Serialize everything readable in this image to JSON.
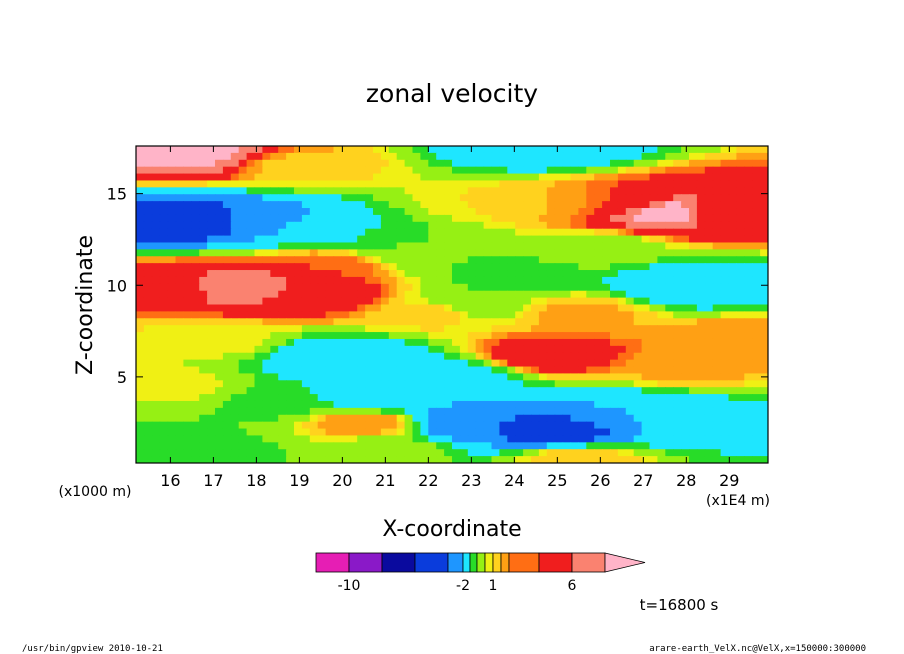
{
  "chart_data": {
    "type": "heatmap",
    "title": "zonal velocity",
    "xlabel": "X-coordinate",
    "ylabel": "Z-coordinate",
    "x_unit_label": "(x1E4 m)",
    "y_unit_label": "(x1000 m)",
    "xlim": [
      15.2,
      29.9
    ],
    "ylim": [
      0.3,
      17.6
    ],
    "x_ticks": [
      "16",
      "17",
      "18",
      "19",
      "20",
      "21",
      "22",
      "23",
      "24",
      "25",
      "26",
      "27",
      "28",
      "29"
    ],
    "y_ticks": [
      "5",
      "10",
      "15"
    ],
    "timestamp": "t=16800 s",
    "colorbar": {
      "levels": [
        -12,
        -10,
        -8,
        -6,
        -4,
        -2,
        -1,
        0,
        0.5,
        1,
        1.5,
        2,
        4,
        6,
        8
      ],
      "tick_labels": [
        "-10",
        "-2",
        "1",
        "6"
      ],
      "colors": [
        "#e61eb4",
        "#8a19c8",
        "#0a0a9e",
        "#0a3cdc",
        "#1e96ff",
        "#1ee6ff",
        "#28dc28",
        "#96f014",
        "#f0f014",
        "#ffd21e",
        "#ffa014",
        "#ff6e14",
        "#f01e1e",
        "#fa8270",
        "#ffb4c8"
      ]
    },
    "field_centers": [
      {
        "x": 16.5,
        "z": 17.2,
        "v": 6.5
      },
      {
        "x": 24.5,
        "z": 17.5,
        "v": -4
      },
      {
        "x": 19.0,
        "z": 16.5,
        "v": 0.8
      },
      {
        "x": 16.5,
        "z": 13.5,
        "v": -8
      },
      {
        "x": 18.0,
        "z": 13.5,
        "v": -5
      },
      {
        "x": 19.5,
        "z": 13.0,
        "v": -3
      },
      {
        "x": 23.5,
        "z": 14.5,
        "v": 0.5
      },
      {
        "x": 25.0,
        "z": 14.5,
        "v": 1.0
      },
      {
        "x": 27.5,
        "z": 14.0,
        "v": 7
      },
      {
        "x": 26.5,
        "z": 14.5,
        "v": 2
      },
      {
        "x": 29.0,
        "z": 14.0,
        "v": 2
      },
      {
        "x": 21.5,
        "z": 12.5,
        "v": -1
      },
      {
        "x": 22.5,
        "z": 11.5,
        "v": -1
      },
      {
        "x": 17.5,
        "z": 10.0,
        "v": 6
      },
      {
        "x": 19.5,
        "z": 9.5,
        "v": 3
      },
      {
        "x": 16.0,
        "z": 10.0,
        "v": 2
      },
      {
        "x": 28.0,
        "z": 10.0,
        "v": -4
      },
      {
        "x": 24.0,
        "z": 10.5,
        "v": -1.5
      },
      {
        "x": 23.0,
        "z": 9.0,
        "v": -1
      },
      {
        "x": 22.0,
        "z": 8.5,
        "v": 0.8
      },
      {
        "x": 25.5,
        "z": 8.5,
        "v": 1.2
      },
      {
        "x": 29.0,
        "z": 7.0,
        "v": 1.5
      },
      {
        "x": 17.0,
        "z": 7.0,
        "v": 0.3
      },
      {
        "x": 20.0,
        "z": 6.0,
        "v": -4
      },
      {
        "x": 22.5,
        "z": 5.0,
        "v": -3
      },
      {
        "x": 24.8,
        "z": 6.2,
        "v": 3
      },
      {
        "x": 28.0,
        "z": 5.5,
        "v": 1.2
      },
      {
        "x": 16.0,
        "z": 4.5,
        "v": 0.2
      },
      {
        "x": 18.5,
        "z": 3.5,
        "v": -1.2
      },
      {
        "x": 20.5,
        "z": 2.5,
        "v": 1.5
      },
      {
        "x": 23.0,
        "z": 2.5,
        "v": -6
      },
      {
        "x": 25.0,
        "z": 2.0,
        "v": -7
      },
      {
        "x": 27.0,
        "z": 3.0,
        "v": -4
      },
      {
        "x": 29.0,
        "z": 2.5,
        "v": -2
      },
      {
        "x": 16.5,
        "z": 1.0,
        "v": -1.5
      },
      {
        "x": 21.0,
        "z": 1.0,
        "v": -0.5
      },
      {
        "x": 25.5,
        "z": 0.5,
        "v": 1.0
      },
      {
        "x": 20.8,
        "z": 3.8,
        "v": -3.5
      },
      {
        "x": 26.0,
        "z": 12.0,
        "v": -0.5
      },
      {
        "x": 19.5,
        "z": 11.0,
        "v": 2.0
      }
    ]
  },
  "footer": {
    "left": "/usr/bin/gpview   2010-10-21",
    "right": "arare-earth_VelX.nc@VelX,x=150000:300000"
  }
}
